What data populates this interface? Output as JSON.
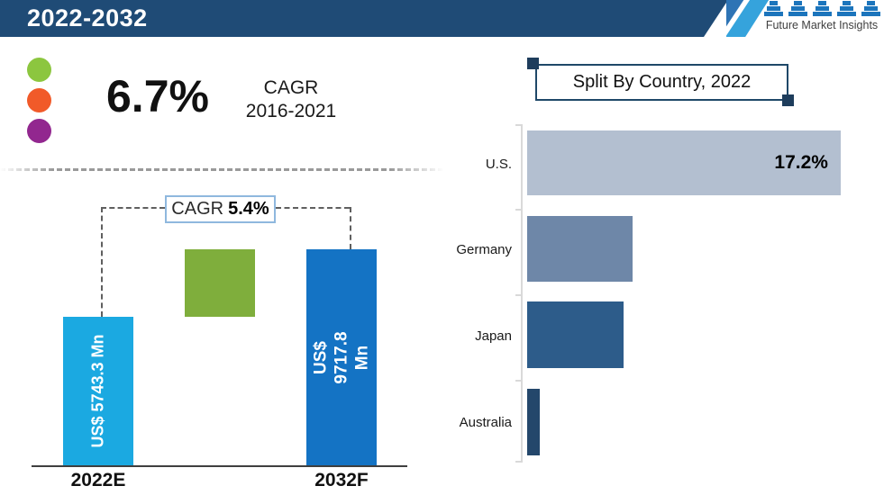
{
  "header": {
    "title": "2022-2032",
    "logo_text": "Future Market Insights"
  },
  "kpi": {
    "value": "6.7%",
    "label": "CAGR",
    "period": "2016-2021",
    "dots": [
      "#8CC63F",
      "#F15A29",
      "#92278F"
    ]
  },
  "chart_data": [
    {
      "id": "market-forecast",
      "type": "bar",
      "title": "",
      "categories": [
        "2022E",
        "2032F"
      ],
      "values": [
        5743.3,
        9717.8
      ],
      "unit": "US$ Mn",
      "bar_value_labels": [
        "US$ 5743.3 Mn",
        "US$ 9717.8 Mn"
      ],
      "bar_colors": [
        "#1BA9E1",
        "#1473C4"
      ],
      "legend_marker_color": "#7FAE3C",
      "cagr_label": "CAGR",
      "cagr_value": "5.4%",
      "axis": "x-axis only, no gridlines"
    },
    {
      "id": "split-by-country",
      "type": "bar",
      "orientation": "horizontal",
      "title": "Split By Country, 2022",
      "categories": [
        "U.S.",
        "Germany",
        "Japan",
        "Australia"
      ],
      "values": [
        17.2,
        5.8,
        5.3,
        0.7
      ],
      "value_labels": [
        "17.2%",
        "",
        "",
        ""
      ],
      "bar_colors": [
        "#B3BFD0",
        "#6E87A8",
        "#2D5C8A",
        "#24476B"
      ],
      "xlim": [
        0,
        18.5
      ],
      "grid": "off",
      "legend_position": "none"
    }
  ]
}
